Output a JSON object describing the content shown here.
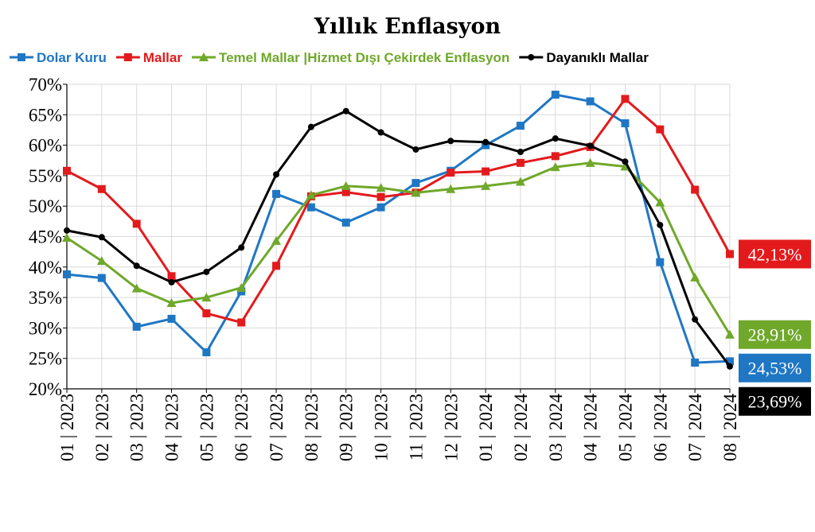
{
  "chart_data": {
    "type": "line",
    "title": "Yıllık Enflasyon",
    "xlabel": "",
    "ylabel": "",
    "categories": [
      "01 | 2023",
      "02 | 2023",
      "03 | 2023",
      "04 | 2023",
      "05 | 2023",
      "06 | 2023",
      "07 | 2023",
      "08 | 2023",
      "09 | 2023",
      "10 | 2023",
      "11 | 2023",
      "12 | 2023",
      "01 | 2024",
      "02 | 2024",
      "03 | 2024",
      "04 | 2024",
      "05 | 2024",
      "06 | 2024",
      "07 | 2024",
      "08 | 2024"
    ],
    "ylim": [
      20,
      70
    ],
    "yticks": [
      20,
      25,
      30,
      35,
      40,
      45,
      50,
      55,
      60,
      65,
      70
    ],
    "ytick_labels": [
      "20%",
      "25%",
      "30%",
      "35%",
      "40%",
      "45%",
      "50%",
      "55%",
      "60%",
      "65%",
      "70%"
    ],
    "grid": true,
    "legend_position": "top",
    "series": [
      {
        "name": "Dolar Kuru",
        "color": "#1f77c4",
        "marker": "square",
        "values": [
          38.8,
          38.2,
          30.2,
          31.5,
          26.0,
          36.0,
          52.0,
          49.8,
          47.3,
          49.8,
          53.8,
          55.8,
          60.0,
          63.2,
          68.3,
          67.2,
          63.6,
          40.8,
          24.3,
          24.53
        ],
        "end_label": "24,53%"
      },
      {
        "name": "Mallar",
        "color": "#e31a1c",
        "marker": "square",
        "values": [
          55.8,
          52.8,
          47.1,
          38.5,
          32.4,
          30.9,
          40.2,
          51.6,
          52.3,
          51.5,
          52.2,
          55.5,
          55.7,
          57.1,
          58.2,
          59.7,
          67.6,
          62.6,
          52.7,
          42.13
        ],
        "end_label": "42,13%"
      },
      {
        "name": "Temel Mallar |Hizmet Dışı Çekirdek Enflasyon",
        "color": "#6fa82a",
        "marker": "triangle",
        "values": [
          44.8,
          41.0,
          36.5,
          34.1,
          35.0,
          36.6,
          44.3,
          51.8,
          53.3,
          53.0,
          52.2,
          52.8,
          53.3,
          54.0,
          56.4,
          57.1,
          56.5,
          50.6,
          38.3,
          28.91
        ],
        "end_label": "28,91%"
      },
      {
        "name": "Dayanıklı Mallar",
        "color": "#000000",
        "marker": "circle",
        "values": [
          46.0,
          44.9,
          40.2,
          37.5,
          39.2,
          43.2,
          55.2,
          63.0,
          65.6,
          62.1,
          59.3,
          60.7,
          60.5,
          58.9,
          61.1,
          59.9,
          57.3,
          46.9,
          31.4,
          23.69
        ],
        "end_label": "23,69%"
      }
    ]
  }
}
